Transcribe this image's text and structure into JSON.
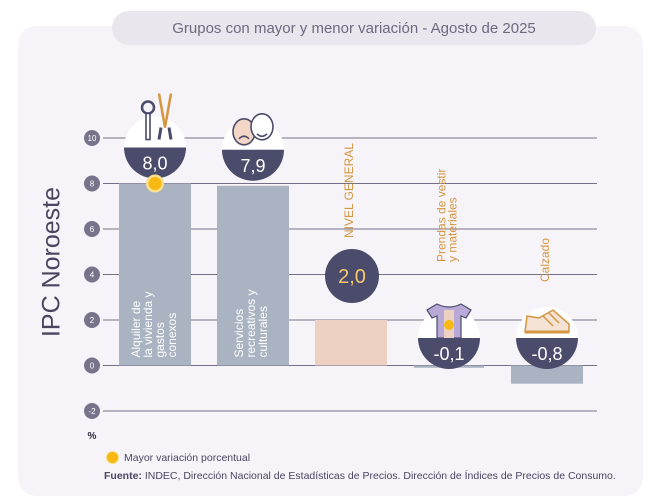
{
  "title": "Grupos con mayor y menor variación - Agosto de 2025",
  "side_title": "IPC Noroeste",
  "legend": {
    "label": "Mayor variación porcentual"
  },
  "source": {
    "label": "Fuente:",
    "text": "INDEC, Dirección Nacional de Estadísticas de Precios. Dirección de Índices de Precios de Consumo."
  },
  "colors": {
    "bar": "#a9b3c2",
    "general_bar": "#ecd1c3",
    "bubble": "#4b4b6b",
    "highlight": "#f7b812",
    "category_text": "#d4963f"
  },
  "icons": [
    "keys-and-pliers-icon",
    "theater-masks-icon",
    "",
    "tshirt-icon",
    "sneaker-icon"
  ],
  "chart_data": {
    "type": "bar",
    "categories": [
      "Alquiler de la vivienda y gastos conexos",
      "Servicios recreativos y culturales",
      "NIVEL GENERAL",
      "Prendas de vestir y materiales",
      "Calzado"
    ],
    "values": [
      8.0,
      7.9,
      2.0,
      -0.1,
      -0.8
    ],
    "value_labels": [
      "8,0",
      "7,9",
      "2,0",
      "-0,1",
      "-0,8"
    ],
    "highlighted": [
      true,
      false,
      false,
      false,
      false
    ],
    "ylim": [
      -2,
      10
    ],
    "yticks": [
      -2,
      0,
      2,
      4,
      6,
      8,
      10
    ],
    "ylabel": "%",
    "grid": true
  }
}
